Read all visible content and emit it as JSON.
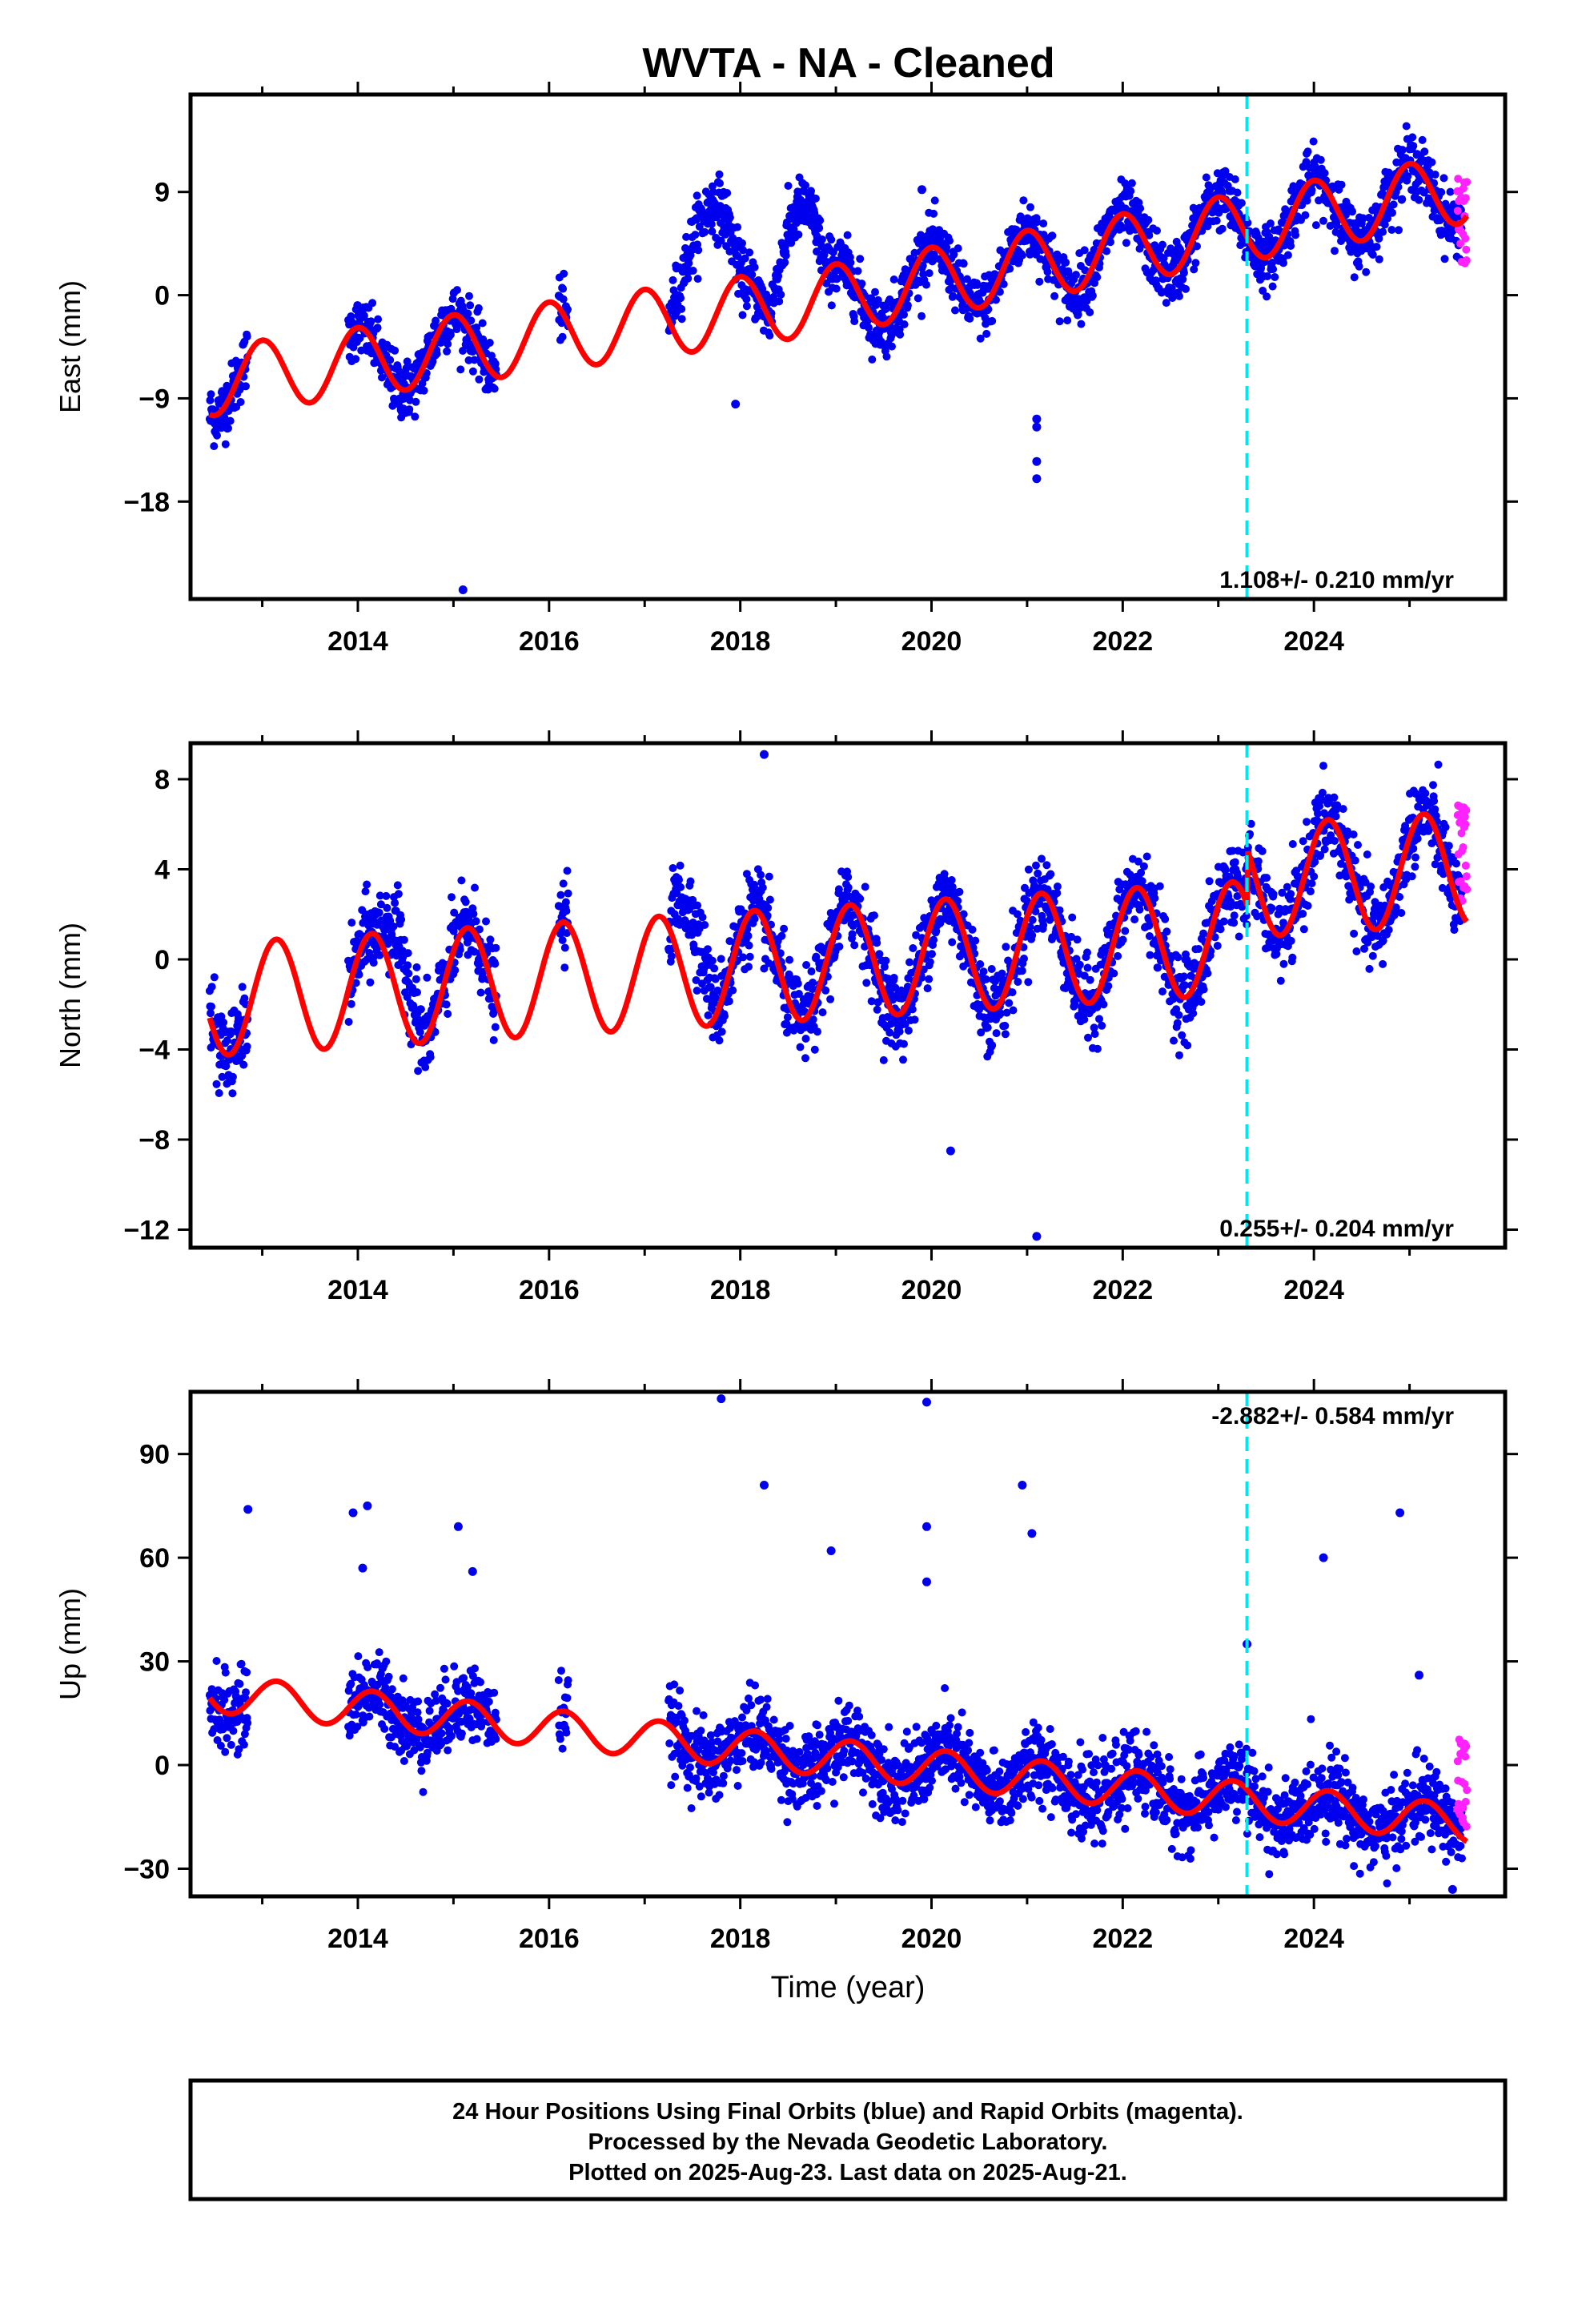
{
  "title": "WVTA  - NA - Cleaned",
  "colors": {
    "final_points": "#0000ee",
    "rapid_points": "#ff22ff",
    "model_line": "#ff0000",
    "event_line": "#00e5ee",
    "frame": "#000000"
  },
  "chart_data": [
    {
      "type": "scatter",
      "component": "east",
      "ylabel": "East (mm)",
      "xlim": [
        2012.25,
        2026.0
      ],
      "ylim": [
        -26.5,
        17.5
      ],
      "yticks": [
        9,
        0,
        -9,
        -18
      ],
      "ytick_labels": [
        "9",
        "0",
        "−9",
        "−18"
      ],
      "xticks": [
        2014,
        2016,
        2018,
        2020,
        2022,
        2024
      ],
      "xtick_labels": [
        "2014",
        "2016",
        "2018",
        "2020",
        "2022",
        "2024"
      ],
      "rate_label": "1.108+/- 0.210 mm/yr",
      "rate_position": "bottom-right",
      "event_line_x": 2023.3,
      "model": {
        "anchor_t": 2012.4,
        "anchor_y": -7.6,
        "trend": 1.108,
        "sin": 0.0,
        "cos": 3.0,
        "trend_after_2019": 0.35,
        "jump_2023": 0.0
      },
      "data_segments": [
        [
          2012.45,
          2012.85
        ],
        [
          2013.9,
          2015.45
        ],
        [
          2016.1,
          2016.2
        ],
        [
          2017.25,
          2025.55
        ]
      ],
      "anomalies": [
        {
          "t0": 2017.25,
          "t1": 2018.0,
          "offset": 11.0
        },
        {
          "t0": 2018.3,
          "t1": 2018.9,
          "offset": 10.5
        }
      ],
      "outliers": [
        {
          "x": 2015.1,
          "y": -25.7
        },
        {
          "x": 2021.1,
          "y": -16.0
        },
        {
          "x": 2021.1,
          "y": -14.5
        },
        {
          "x": 2021.1,
          "y": -11.5
        },
        {
          "x": 2021.1,
          "y": -10.8
        },
        {
          "x": 2019.9,
          "y": 9.2
        },
        {
          "x": 2017.95,
          "y": -9.5
        }
      ],
      "noise_sd": 1.3,
      "rapid_segment": [
        2025.5,
        2025.6
      ],
      "rapid_range": [
        2.5,
        11.0
      ]
    },
    {
      "type": "scatter",
      "component": "north",
      "ylabel": "North (mm)",
      "xlim": [
        2012.25,
        2026.0
      ],
      "ylim": [
        -12.8,
        9.6
      ],
      "yticks": [
        8,
        4,
        0,
        -4,
        -8,
        -12
      ],
      "ytick_labels": [
        "8",
        "4",
        "0",
        "−4",
        "−8",
        "−12"
      ],
      "xticks": [
        2014,
        2016,
        2018,
        2020,
        2022,
        2024
      ],
      "xtick_labels": [
        "2014",
        "2016",
        "2018",
        "2020",
        "2022",
        "2024"
      ],
      "rate_label": "0.255+/- 0.204 mm/yr",
      "rate_position": "bottom-right",
      "event_line_x": 2023.3,
      "model": {
        "anchor_t": 2012.4,
        "anchor_y": -1.8,
        "trend": 0.255,
        "sin": 2.0,
        "cos": 1.5,
        "trend_after_2019": 0.0,
        "jump_2023": 2.5
      },
      "data_segments": [
        [
          2012.45,
          2012.85
        ],
        [
          2013.9,
          2015.45
        ],
        [
          2016.1,
          2016.2
        ],
        [
          2017.25,
          2025.55
        ]
      ],
      "anomalies": [
        {
          "t0": 2017.25,
          "t1": 2017.75,
          "offset": 4.0
        },
        {
          "t0": 2014.2,
          "t1": 2014.7,
          "offset": 2.5
        }
      ],
      "outliers": [
        {
          "x": 2021.1,
          "y": -12.3
        },
        {
          "x": 2018.25,
          "y": 9.1
        },
        {
          "x": 2020.2,
          "y": -8.5
        }
      ],
      "noise_sd": 0.9,
      "rapid_segment": [
        2025.5,
        2025.6
      ],
      "rapid_range": [
        2.5,
        7.0
      ]
    },
    {
      "type": "scatter",
      "component": "up",
      "ylabel": "Up (mm)",
      "xlabel": "Time (year)",
      "xlim": [
        2012.25,
        2026.0
      ],
      "ylim": [
        -38.0,
        108.0
      ],
      "yticks": [
        90,
        60,
        30,
        0,
        -30
      ],
      "ytick_labels": [
        "90",
        "60",
        "30",
        "0",
        "−30"
      ],
      "xticks": [
        2014,
        2016,
        2018,
        2020,
        2022,
        2024
      ],
      "xtick_labels": [
        "2014",
        "2016",
        "2018",
        "2020",
        "2022",
        "2024"
      ],
      "rate_label": "-2.882+/- 0.584 mm/yr",
      "rate_position": "top-right",
      "event_line_x": 2023.3,
      "model": {
        "anchor_t": 2012.4,
        "anchor_y": 21.0,
        "trend": -2.882,
        "sin": 4.5,
        "cos": 3.0,
        "trend_after_2019": 0.0,
        "jump_2023": 0.0
      },
      "data_segments": [
        [
          2012.45,
          2012.85
        ],
        [
          2013.9,
          2015.45
        ],
        [
          2016.1,
          2016.2
        ],
        [
          2017.25,
          2025.55
        ]
      ],
      "anomalies": [],
      "outliers": [
        {
          "x": 2017.8,
          "y": 106
        },
        {
          "x": 2019.95,
          "y": 105
        },
        {
          "x": 2012.85,
          "y": 74
        },
        {
          "x": 2013.95,
          "y": 73
        },
        {
          "x": 2014.1,
          "y": 75
        },
        {
          "x": 2024.9,
          "y": 73
        },
        {
          "x": 2018.25,
          "y": 81
        },
        {
          "x": 2020.95,
          "y": 81
        },
        {
          "x": 2021.05,
          "y": 67
        },
        {
          "x": 2019.95,
          "y": 69
        },
        {
          "x": 2015.05,
          "y": 69
        },
        {
          "x": 2018.95,
          "y": 62
        },
        {
          "x": 2024.1,
          "y": 60
        },
        {
          "x": 2014.05,
          "y": 57
        },
        {
          "x": 2015.2,
          "y": 56
        },
        {
          "x": 2019.95,
          "y": 53
        },
        {
          "x": 2023.3,
          "y": 35
        },
        {
          "x": 2025.1,
          "y": 26
        },
        {
          "x": 2025.45,
          "y": -36
        }
      ],
      "noise_sd": 5.5,
      "rapid_segment": [
        2025.5,
        2025.6
      ],
      "rapid_range": [
        -20.0,
        9.0
      ]
    }
  ],
  "footer": {
    "line1": "24 Hour Positions Using Final Orbits (blue) and Rapid Orbits (magenta).",
    "line2": "Processed by the Nevada Geodetic Laboratory.",
    "line3": "Plotted on 2025-Aug-23. Last data on 2025-Aug-21."
  }
}
